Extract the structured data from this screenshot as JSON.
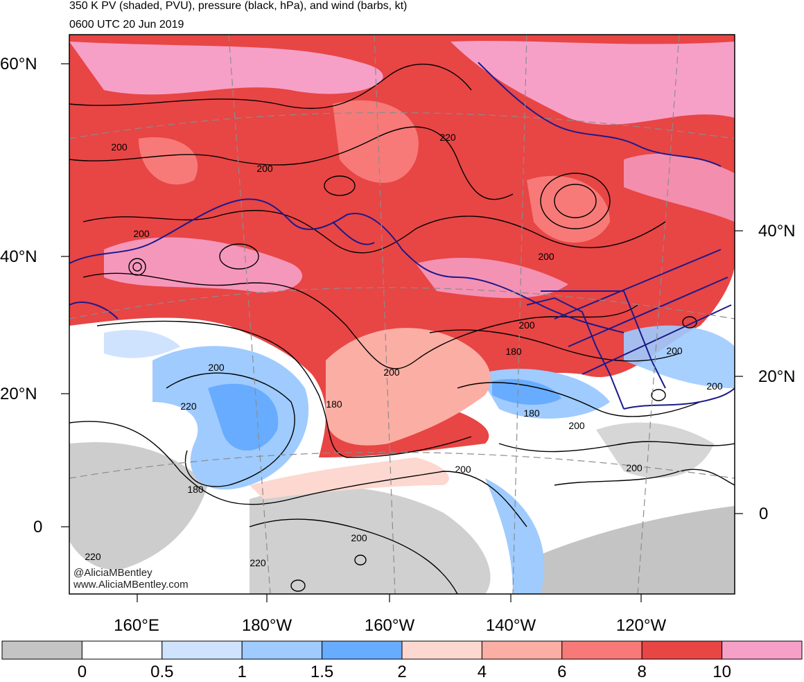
{
  "header": {
    "title": "350 K PV (shaded, PVU), pressure (black, hPa), and wind (barbs, kt)",
    "time": "0600 UTC 20 Jun 2019"
  },
  "map": {
    "projection_hint": "polar-stereographic sector, N Pacific",
    "lat_labels_left": [
      "60°N",
      "40°N",
      "20°N",
      "0"
    ],
    "lat_labels_right": [
      "40°N",
      "20°N",
      "0"
    ],
    "lon_labels": [
      "160°E",
      "180°W",
      "160°W",
      "140°W",
      "120°W"
    ],
    "contour_labels": [
      "200",
      "200",
      "200",
      "220",
      "200",
      "200",
      "200",
      "200",
      "200",
      "180",
      "200",
      "220",
      "180",
      "180",
      "200",
      "180",
      "200",
      "200",
      "220",
      "200",
      "220"
    ],
    "colors": {
      "coastline": "#1a1a8c",
      "contour": "#000000",
      "grid": "#8c8c8c"
    }
  },
  "credit": {
    "handle": "@AliciaMBentley",
    "site": "www.AliciaMBentley.com"
  },
  "colorbar": {
    "colors": [
      "#c4c4c4",
      "#ffffff",
      "#cfe3ff",
      "#9fcbff",
      "#68acff",
      "#fcd8d0",
      "#fbaea4",
      "#f77a78",
      "#e84545",
      "#f6a0c8"
    ],
    "labels": [
      "0",
      "0.5",
      "1",
      "1.5",
      "2",
      "4",
      "6",
      "8",
      "10"
    ]
  }
}
